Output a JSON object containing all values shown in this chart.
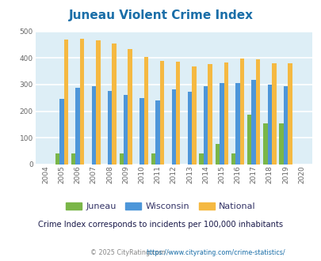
{
  "title": "Juneau Violent Crime Index",
  "years": [
    "2004",
    "2005",
    "2006",
    "2007",
    "2008",
    "2009",
    "2010",
    "2011",
    "2012",
    "2013",
    "2014",
    "2015",
    "2016",
    "2017",
    "2018",
    "2019",
    "2020"
  ],
  "juneau": [
    0,
    42,
    42,
    0,
    0,
    42,
    0,
    40,
    0,
    0,
    40,
    78,
    42,
    187,
    153,
    153,
    0
  ],
  "wisconsin": [
    0,
    245,
    287,
    294,
    276,
    260,
    250,
    240,
    282,
    272,
    293,
    306,
    306,
    318,
    299,
    294,
    0
  ],
  "national": [
    0,
    469,
    472,
    467,
    455,
    432,
    405,
    388,
    387,
    368,
    377,
    384,
    399,
    394,
    381,
    381,
    0
  ],
  "juneau_color": "#7ab648",
  "wisconsin_color": "#4d96d9",
  "national_color": "#f5b942",
  "bg_color": "#ddeef6",
  "ylim": [
    0,
    500
  ],
  "yticks": [
    0,
    100,
    200,
    300,
    400,
    500
  ],
  "subtitle": "Crime Index corresponds to incidents per 100,000 inhabitants",
  "footer": "© 2025 CityRating.com - https://www.cityrating.com/crime-statistics/",
  "title_color": "#1a6ea8",
  "subtitle_color": "#1a1a4a",
  "footer_color": "#888888",
  "footer_link_color": "#1a6ea8",
  "grid_color": "#c8dde8"
}
